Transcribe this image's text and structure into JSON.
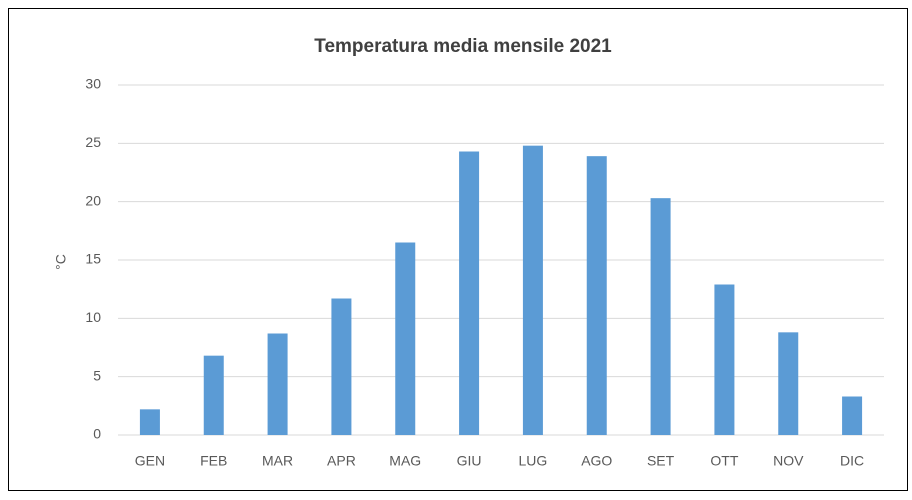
{
  "chart_data": {
    "type": "bar",
    "title": "Temperatura media mensile 2021",
    "y_label": "°C",
    "categories": [
      "GEN",
      "FEB",
      "MAR",
      "APR",
      "MAG",
      "GIU",
      "LUG",
      "AGO",
      "SET",
      "OTT",
      "NOV",
      "DIC"
    ],
    "values": [
      2.2,
      6.8,
      8.7,
      11.7,
      16.5,
      24.3,
      24.8,
      23.9,
      20.3,
      12.9,
      8.8,
      3.3
    ],
    "color": "#5b9bd5",
    "ylim": [
      0,
      30
    ],
    "yticks": [
      0,
      5,
      10,
      15,
      20,
      25,
      30
    ],
    "grid": true
  }
}
